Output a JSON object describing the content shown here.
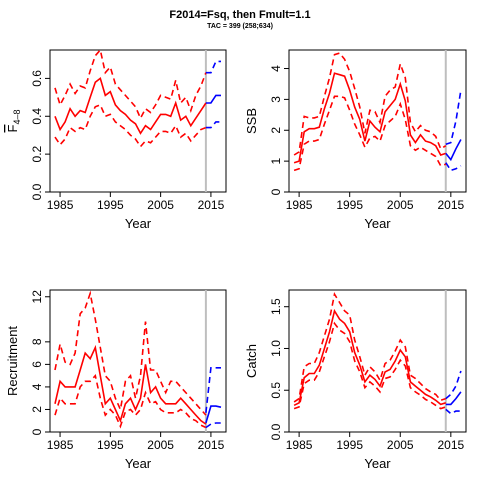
{
  "title": "F2014=Fsq, then Fmult=1.1",
  "subtitle": "TAC = 399 (258;634)",
  "colors": {
    "historic": "#ff0000",
    "forecast": "#0000ff",
    "ref_line": "#bebebe",
    "axis": "#000000"
  },
  "chart_data": [
    {
      "type": "line",
      "ylabel": "F̄ 4-8",
      "ylabel_main": "F",
      "ylabel_sub": "4–8",
      "xlabel": "Year",
      "xlim": [
        1983,
        2018
      ],
      "ylim": [
        0,
        0.75
      ],
      "yticks": [
        "0.0",
        "0.2",
        "0.4",
        "0.6"
      ],
      "xticks": [
        "1985",
        "1995",
        "2005",
        "2015"
      ],
      "ref_year": 2014,
      "historic": {
        "x": [
          1984,
          1985,
          1986,
          1987,
          1988,
          1989,
          1990,
          1991,
          1992,
          1993,
          1994,
          1995,
          1996,
          1997,
          1998,
          1999,
          2000,
          2001,
          2002,
          2003,
          2004,
          2005,
          2006,
          2007,
          2008,
          2009,
          2010,
          2011,
          2012,
          2013,
          2014
        ],
        "mid": [
          0.4,
          0.33,
          0.37,
          0.44,
          0.4,
          0.43,
          0.42,
          0.5,
          0.58,
          0.6,
          0.51,
          0.53,
          0.46,
          0.43,
          0.41,
          0.38,
          0.36,
          0.31,
          0.35,
          0.33,
          0.37,
          0.41,
          0.41,
          0.4,
          0.47,
          0.38,
          0.4,
          0.35,
          0.39,
          0.43,
          0.47
        ],
        "low": [
          0.29,
          0.25,
          0.28,
          0.34,
          0.32,
          0.34,
          0.33,
          0.4,
          0.45,
          0.46,
          0.4,
          0.41,
          0.37,
          0.35,
          0.33,
          0.3,
          0.28,
          0.24,
          0.27,
          0.26,
          0.29,
          0.32,
          0.32,
          0.31,
          0.35,
          0.29,
          0.31,
          0.27,
          0.3,
          0.33,
          0.34
        ],
        "high": [
          0.55,
          0.46,
          0.51,
          0.57,
          0.52,
          0.56,
          0.55,
          0.64,
          0.72,
          0.75,
          0.63,
          0.66,
          0.57,
          0.54,
          0.51,
          0.48,
          0.45,
          0.39,
          0.44,
          0.42,
          0.46,
          0.51,
          0.5,
          0.49,
          0.59,
          0.47,
          0.5,
          0.43,
          0.51,
          0.56,
          0.63
        ]
      },
      "forecast": {
        "x": [
          2014,
          2015,
          2016,
          2017
        ],
        "mid": [
          0.47,
          0.47,
          0.51,
          0.51
        ],
        "low": [
          0.34,
          0.34,
          0.37,
          0.37
        ],
        "high": [
          0.63,
          0.63,
          0.69,
          0.69
        ]
      }
    },
    {
      "type": "line",
      "ylabel": "SSB",
      "xlabel": "Year",
      "xlim": [
        1983,
        2018
      ],
      "ylim": [
        0,
        4.6
      ],
      "yticks": [
        "0",
        "1",
        "2",
        "3",
        "4"
      ],
      "xticks": [
        "1985",
        "1995",
        "2005",
        "2015"
      ],
      "ref_year": 2014,
      "historic": {
        "x": [
          1984,
          1985,
          1986,
          1987,
          1988,
          1989,
          1990,
          1991,
          1992,
          1993,
          1994,
          1995,
          1996,
          1997,
          1998,
          1999,
          2000,
          2001,
          2002,
          2003,
          2004,
          2005,
          2006,
          2007,
          2008,
          2009,
          2010,
          2011,
          2012,
          2013,
          2014
        ],
        "mid": [
          0.95,
          1.0,
          1.95,
          2.05,
          2.05,
          2.1,
          2.7,
          3.2,
          3.85,
          3.8,
          3.75,
          3.3,
          2.75,
          2.35,
          1.65,
          2.3,
          2.1,
          1.95,
          2.6,
          2.8,
          3.0,
          3.5,
          2.95,
          1.85,
          1.6,
          1.85,
          1.65,
          1.6,
          1.5,
          1.2,
          1.25
        ],
        "low": [
          0.7,
          0.75,
          1.55,
          1.65,
          1.65,
          1.7,
          2.2,
          2.65,
          3.1,
          3.1,
          3.05,
          2.65,
          2.2,
          1.85,
          1.45,
          1.75,
          1.8,
          1.65,
          2.15,
          2.3,
          2.45,
          2.85,
          2.35,
          1.5,
          1.35,
          1.45,
          1.35,
          1.25,
          1.15,
          0.85,
          0.9
        ],
        "high": [
          1.2,
          1.3,
          2.45,
          2.4,
          2.4,
          2.45,
          3.1,
          3.7,
          4.45,
          4.5,
          4.3,
          3.9,
          3.35,
          2.75,
          1.9,
          2.65,
          2.6,
          2.25,
          3.1,
          3.3,
          3.4,
          4.15,
          3.7,
          2.25,
          1.95,
          2.15,
          2.0,
          1.95,
          1.8,
          1.4,
          1.5
        ]
      },
      "forecast": {
        "x": [
          2014,
          2015,
          2016,
          2017
        ],
        "mid": [
          1.25,
          1.05,
          1.4,
          1.7
        ],
        "low": [
          0.95,
          0.7,
          0.75,
          0.85
        ],
        "high": [
          1.55,
          1.6,
          2.3,
          3.3
        ]
      }
    },
    {
      "type": "line",
      "ylabel": "Recruitment",
      "xlabel": "Year",
      "xlim": [
        1983,
        2018
      ],
      "ylim": [
        0,
        12.6
      ],
      "yticks": [
        "0",
        "2",
        "4",
        "6",
        "8",
        "12"
      ],
      "ytick_values": [
        0,
        2,
        4,
        6,
        8,
        12
      ],
      "xticks": [
        "1985",
        "1995",
        "2005",
        "2015"
      ],
      "ref_year": 2014,
      "historic": {
        "x": [
          1984,
          1985,
          1986,
          1987,
          1988,
          1989,
          1990,
          1991,
          1992,
          1993,
          1994,
          1995,
          1996,
          1997,
          1998,
          1999,
          2000,
          2001,
          2002,
          2003,
          2004,
          2005,
          2006,
          2007,
          2008,
          2009,
          2010,
          2011,
          2012,
          2013,
          2014
        ],
        "mid": [
          2.5,
          4.5,
          4.0,
          4.0,
          4.0,
          5.5,
          7.0,
          6.5,
          7.5,
          5.0,
          2.5,
          3.0,
          2.0,
          1.0,
          2.5,
          3.0,
          2.0,
          3.0,
          6.0,
          3.5,
          4.0,
          3.0,
          2.5,
          2.5,
          2.5,
          3.0,
          2.5,
          2.0,
          1.5,
          1.0,
          0.7
        ],
        "low": [
          1.5,
          3.0,
          2.5,
          2.5,
          2.5,
          4.0,
          4.5,
          4.5,
          5.0,
          3.0,
          1.5,
          2.0,
          1.5,
          0.5,
          1.8,
          2.0,
          1.5,
          2.0,
          3.5,
          2.5,
          2.7,
          2.0,
          1.7,
          1.7,
          1.7,
          2.0,
          1.7,
          1.2,
          1.0,
          0.6,
          0.4
        ],
        "high": [
          5.5,
          7.8,
          6.2,
          6.0,
          7.0,
          10.5,
          11.0,
          12.3,
          10.0,
          7.5,
          5.0,
          4.5,
          3.0,
          2.0,
          4.5,
          5.0,
          3.0,
          5.0,
          9.8,
          5.5,
          5.5,
          4.5,
          3.5,
          4.5,
          4.5,
          4.0,
          3.5,
          3.0,
          2.5,
          2.0,
          1.5
        ]
      },
      "forecast": {
        "x": [
          2014,
          2015,
          2016,
          2017
        ],
        "mid": [
          0.8,
          2.3,
          2.3,
          2.2
        ],
        "low": [
          0.4,
          0.7,
          0.8,
          0.8
        ],
        "high": [
          1.7,
          5.7,
          5.7,
          5.7
        ]
      }
    },
    {
      "type": "line",
      "ylabel": "Catch",
      "xlabel": "Year",
      "xlim": [
        1983,
        2018
      ],
      "ylim": [
        0,
        1.7
      ],
      "yticks": [
        "0.0",
        "0.5",
        "1.0",
        "1.5"
      ],
      "xticks": [
        "1985",
        "1995",
        "2005",
        "2015"
      ],
      "ref_year": 2014,
      "historic": {
        "x": [
          1984,
          1985,
          1986,
          1987,
          1988,
          1989,
          1990,
          1991,
          1992,
          1993,
          1994,
          1995,
          1996,
          1997,
          1998,
          1999,
          2000,
          2001,
          2002,
          2003,
          2004,
          2005,
          2006,
          2007,
          2008,
          2009,
          2010,
          2011,
          2012,
          2013,
          2014
        ],
        "mid": [
          0.32,
          0.35,
          0.65,
          0.7,
          0.7,
          0.8,
          1.0,
          1.2,
          1.45,
          1.35,
          1.3,
          1.2,
          0.95,
          0.8,
          0.6,
          0.68,
          0.63,
          0.55,
          0.72,
          0.75,
          0.85,
          0.98,
          0.9,
          0.6,
          0.55,
          0.5,
          0.45,
          0.42,
          0.38,
          0.33,
          0.35
        ],
        "low": [
          0.28,
          0.3,
          0.58,
          0.62,
          0.62,
          0.72,
          0.9,
          1.08,
          1.3,
          1.22,
          1.18,
          1.08,
          0.85,
          0.72,
          0.53,
          0.6,
          0.55,
          0.48,
          0.64,
          0.66,
          0.75,
          0.86,
          0.79,
          0.53,
          0.48,
          0.44,
          0.39,
          0.36,
          0.32,
          0.28,
          0.3
        ],
        "high": [
          0.36,
          0.4,
          0.78,
          0.82,
          0.82,
          0.95,
          1.15,
          1.35,
          1.65,
          1.55,
          1.45,
          1.4,
          1.1,
          0.9,
          0.68,
          0.78,
          0.72,
          0.62,
          0.82,
          0.86,
          0.97,
          1.1,
          1.02,
          0.68,
          0.64,
          0.58,
          0.52,
          0.48,
          0.45,
          0.38,
          0.4
        ]
      },
      "forecast": {
        "x": [
          2014,
          2015,
          2016,
          2017
        ],
        "mid": [
          0.33,
          0.33,
          0.4,
          0.48
        ],
        "low": [
          0.27,
          0.22,
          0.25,
          0.25
        ],
        "high": [
          0.4,
          0.45,
          0.55,
          0.73
        ]
      }
    }
  ]
}
